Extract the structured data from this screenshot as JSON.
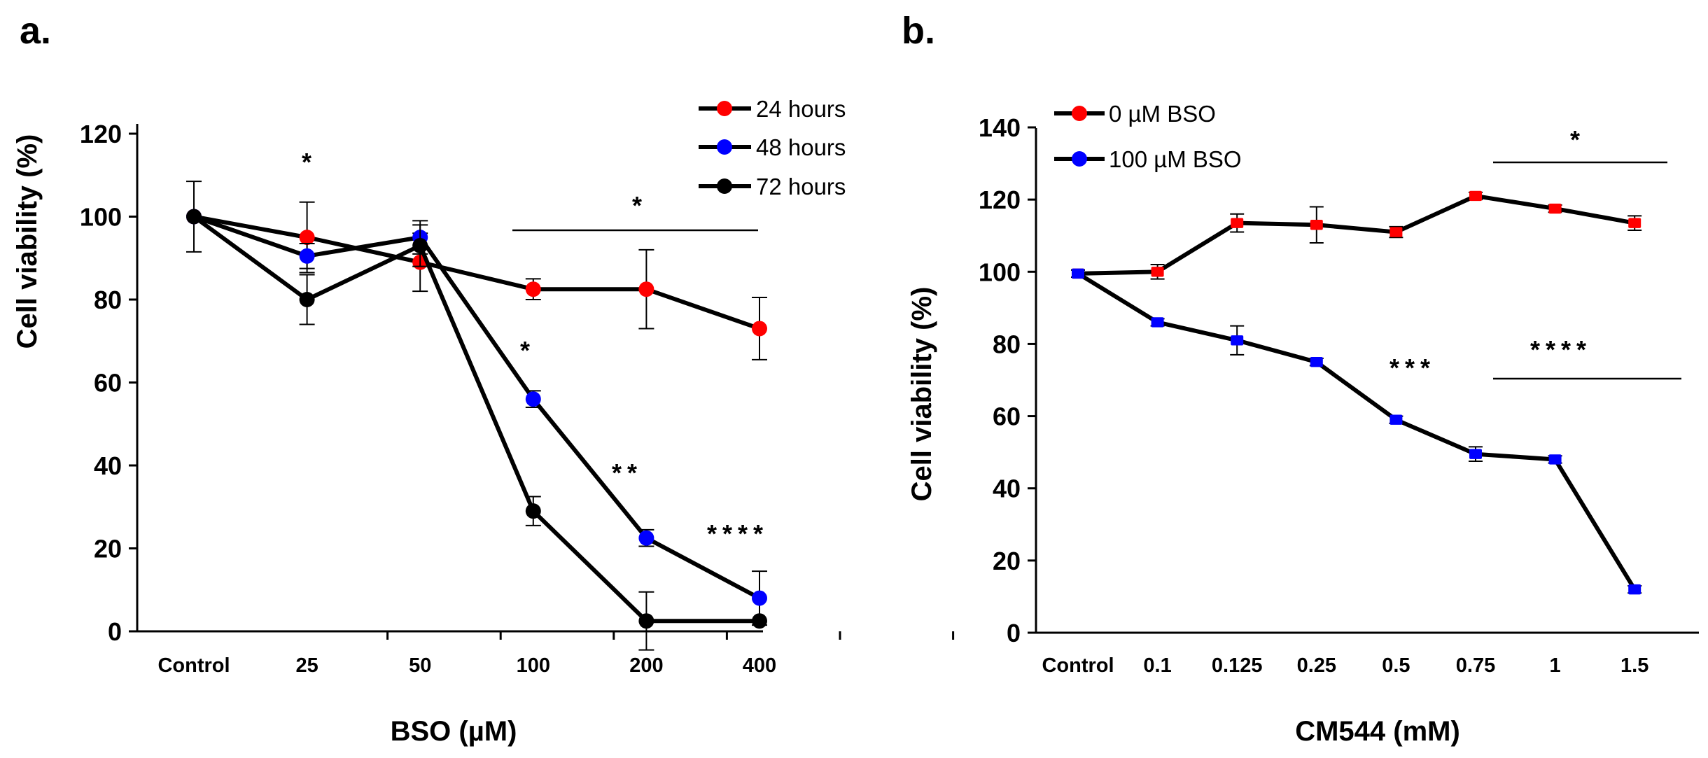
{
  "panels": [
    {
      "label": "a.",
      "chart_data": {
        "type": "line",
        "xlabel": "BSO (µM)",
        "ylabel": "Cell viability (%)",
        "categories": [
          "Control",
          "25",
          "50",
          "100",
          "200",
          "400"
        ],
        "ylim": [
          0,
          120
        ],
        "yticks": [
          0,
          20,
          40,
          60,
          80,
          100,
          120
        ],
        "legend_position": "top-right",
        "series": [
          {
            "name": "24 hours",
            "color": "#ff0000",
            "values": [
              100,
              95,
              89,
              82.5,
              82.5,
              73
            ],
            "errors": [
              8.5,
              8.5,
              7,
              2.5,
              9.5,
              7.5
            ]
          },
          {
            "name": "48 hours",
            "color": "#0000ff",
            "values": [
              100,
              90.5,
              95,
              56,
              22.5,
              8
            ],
            "errors": [
              0,
              3,
              4,
              2,
              2,
              6.5
            ]
          },
          {
            "name": "72 hours",
            "color": "#000000",
            "values": [
              100,
              80,
              93,
              29,
              2.5,
              2.5
            ],
            "errors": [
              0,
              6,
              5,
              3.5,
              7,
              0
            ]
          }
        ],
        "annotations": [
          {
            "text": "*",
            "category": "25"
          },
          {
            "text": "*",
            "category": "200",
            "bracket": true
          },
          {
            "text": "*",
            "category": "100"
          },
          {
            "text": "**",
            "category": "200"
          },
          {
            "text": "****",
            "category": "400"
          }
        ]
      }
    },
    {
      "label": "b.",
      "chart_data": {
        "type": "line",
        "xlabel": "CM544 (mM)",
        "ylabel": "Cell viability (%)",
        "categories": [
          "Control",
          "0.1",
          "0.125",
          "0.25",
          "0.5",
          "0.75",
          "1",
          "1.5"
        ],
        "ylim": [
          0,
          140
        ],
        "yticks": [
          0,
          20,
          40,
          60,
          80,
          100,
          120,
          140
        ],
        "legend_position": "top-left",
        "series": [
          {
            "name": "0 µM BSO",
            "color": "#ff0000",
            "values": [
              99.5,
              100,
              113.5,
              113,
              111,
              121,
              117.5,
              113.5
            ],
            "errors": [
              1,
              2,
              2.5,
              5,
              1.5,
              1,
              1,
              2
            ]
          },
          {
            "name": "100 µM BSO",
            "color": "#0000ff",
            "values": [
              99.5,
              86,
              81,
              75,
              59,
              49.5,
              48,
              12
            ],
            "errors": [
              1,
              1,
              4,
              1,
              1,
              2,
              1,
              1
            ]
          }
        ],
        "annotations": [
          {
            "text": "*",
            "category": "1",
            "bracket": true
          },
          {
            "text": "***",
            "category": "0.5"
          },
          {
            "text": "****",
            "category": "1",
            "bracket": true
          }
        ]
      }
    }
  ]
}
